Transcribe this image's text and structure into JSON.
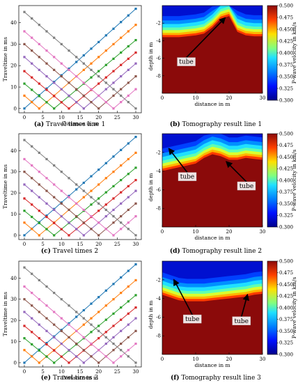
{
  "figure": {
    "captions": [
      {
        "letter": "(a)",
        "text": "Travel times line 1"
      },
      {
        "letter": "(b)",
        "text": "Tomography result line 1"
      },
      {
        "letter": "(c)",
        "text": "Travel times 2"
      },
      {
        "letter": "(d)",
        "text": "Tomography result line 2"
      },
      {
        "letter": "(e)",
        "text": "Travel times 3"
      },
      {
        "letter": "(f)",
        "text": "Tomography result line 3"
      }
    ],
    "colors": [
      "#1f77b4",
      "#ff7f0e",
      "#2ca02c",
      "#d62728",
      "#9467bd",
      "#8c564b",
      "#e377c2",
      "#7f7f7f"
    ],
    "tomo_colors": {
      "high": "#8b0a0a",
      "mid": "#ffb400",
      "low": "#00008b"
    }
  },
  "chart_data": [
    {
      "type": "line",
      "panel": "a",
      "xlabel": "Distance in m",
      "ylabel": "Traveltime in ms",
      "xlim": [
        -1.5,
        31.5
      ],
      "ylim": [
        -2,
        48
      ],
      "xticks": [
        0,
        5,
        10,
        15,
        20,
        25,
        30
      ],
      "yticks": [
        0,
        10,
        20,
        30,
        40
      ],
      "grid": false,
      "series": [
        {
          "source": 0,
          "slope": 1.55,
          "y0": 0
        },
        {
          "source": 4,
          "slope": 1.5,
          "y0": 0
        },
        {
          "source": 8,
          "slope": 1.45,
          "y0": 0
        },
        {
          "source": 12,
          "slope": 1.45,
          "y0": 0
        },
        {
          "source": 16,
          "slope": 1.5,
          "y0": 0
        },
        {
          "source": 20,
          "slope": 1.5,
          "y0": 0
        },
        {
          "source": 24,
          "slope": 1.5,
          "y0": 0
        },
        {
          "source": 30,
          "slope": 1.5,
          "y0": 0
        }
      ]
    },
    {
      "type": "heatmap",
      "panel": "b",
      "xlabel": "distance in m",
      "ylabel": "depth in m",
      "xlim": [
        0,
        30
      ],
      "ylim": [
        -10,
        0
      ],
      "xticks": [
        0,
        10,
        20,
        30
      ],
      "yticks": [
        -2,
        -4,
        -6,
        -8
      ],
      "colorbar": {
        "label": "P-wave velocity in km/s",
        "min": 0.3,
        "max": 0.5,
        "ticks": [
          0.5,
          0.475,
          0.45,
          0.425,
          0.4,
          0.375,
          0.35,
          0.325,
          0.3
        ]
      },
      "boundary_depth": [
        -3.6,
        -3.6,
        -3.6,
        -3.5,
        -3.4,
        -3.2,
        -2.5,
        -1.5,
        -1.2,
        -3.0,
        -3.4,
        -3.5,
        -3.5
      ],
      "annotations": [
        {
          "text": "tube",
          "x": 7.2,
          "y": -6.4,
          "arrow_to_x": 18.8,
          "arrow_to_y": -1.4
        }
      ]
    },
    {
      "type": "line",
      "panel": "c",
      "xlabel": "",
      "ylabel": "Traveltime in ms",
      "xlim": [
        -1.5,
        31.5
      ],
      "ylim": [
        -2,
        48
      ],
      "xticks": [
        0,
        5,
        10,
        15,
        20,
        25,
        30
      ],
      "yticks": [
        0,
        10,
        20,
        30,
        40
      ],
      "grid": false,
      "series": [
        {
          "source": 0,
          "slope": 1.55,
          "y0": 0
        },
        {
          "source": 4,
          "slope": 1.5,
          "y0": 0
        },
        {
          "source": 8,
          "slope": 1.45,
          "y0": 0
        },
        {
          "source": 12,
          "slope": 1.45,
          "y0": 0
        },
        {
          "source": 16,
          "slope": 1.5,
          "y0": 0
        },
        {
          "source": 20,
          "slope": 1.5,
          "y0": 0
        },
        {
          "source": 24,
          "slope": 1.5,
          "y0": 0
        },
        {
          "source": 30,
          "slope": 1.5,
          "y0": 0
        }
      ]
    },
    {
      "type": "heatmap",
      "panel": "d",
      "xlabel": "distance in m",
      "ylabel": "depth in m",
      "xlim": [
        0,
        30
      ],
      "ylim": [
        -10,
        0
      ],
      "xticks": [
        0,
        10,
        20,
        30
      ],
      "yticks": [
        -2,
        -4,
        -6,
        -8
      ],
      "colorbar": {
        "label": "P-wave velocity in km/s",
        "min": 0.3,
        "max": 0.5,
        "ticks": [
          0.5,
          0.475,
          0.45,
          0.425,
          0.4,
          0.375,
          0.35,
          0.325,
          0.3
        ]
      },
      "boundary_depth": [
        -4.0,
        -3.8,
        -3.6,
        -3.4,
        -3.2,
        -2.6,
        -2.2,
        -2.4,
        -2.8,
        -2.8,
        -2.6,
        -2.7,
        -2.8
      ],
      "annotations": [
        {
          "text": "tube",
          "x": 7.5,
          "y": -4.6,
          "arrow_to_x": 2.0,
          "arrow_to_y": -1.6
        },
        {
          "text": "tube",
          "x": 25.2,
          "y": -5.6,
          "arrow_to_x": 19.2,
          "arrow_to_y": -3.0
        }
      ]
    },
    {
      "type": "line",
      "panel": "e",
      "xlabel": "Distance in m",
      "ylabel": "Traveltime in ms",
      "xlim": [
        -1.5,
        31.5
      ],
      "ylim": [
        -2,
        48
      ],
      "xticks": [
        0,
        5,
        10,
        15,
        20,
        25,
        30
      ],
      "yticks": [
        0,
        10,
        20,
        30,
        40
      ],
      "grid": false,
      "series": [
        {
          "source": 0,
          "slope": 1.55,
          "y0": 0
        },
        {
          "source": 4,
          "slope": 1.5,
          "y0": 0
        },
        {
          "source": 8,
          "slope": 1.45,
          "y0": 0
        },
        {
          "source": 12,
          "slope": 1.45,
          "y0": 0
        },
        {
          "source": 16,
          "slope": 1.5,
          "y0": 0
        },
        {
          "source": 20,
          "slope": 1.5,
          "y0": 0
        },
        {
          "source": 24,
          "slope": 1.5,
          "y0": 0
        },
        {
          "source": 30,
          "slope": 1.5,
          "y0": 0
        }
      ]
    },
    {
      "type": "heatmap",
      "panel": "f",
      "xlabel": "distance in m",
      "ylabel": "depth in m",
      "xlim": [
        0,
        30
      ],
      "ylim": [
        -10,
        0
      ],
      "xticks": [
        0,
        10,
        20,
        30
      ],
      "yticks": [
        -2,
        -4,
        -6,
        -8
      ],
      "colorbar": {
        "label": "P-wave velocity in km/s",
        "min": 0.3,
        "max": 0.5,
        "ticks": [
          0.5,
          0.475,
          0.45,
          0.425,
          0.4,
          0.375,
          0.35,
          0.325,
          0.3
        ]
      },
      "boundary_depth": [
        -3.6,
        -3.9,
        -4.2,
        -4.3,
        -4.3,
        -4.3,
        -4.2,
        -4.1,
        -4.0,
        -3.9,
        -3.8,
        -3.6,
        -3.5
      ],
      "annotations": [
        {
          "text": "tube",
          "x": 9.0,
          "y": -6.2,
          "arrow_to_x": 3.5,
          "arrow_to_y": -2.0
        },
        {
          "text": "tube",
          "x": 23.7,
          "y": -6.4,
          "arrow_to_x": 25.5,
          "arrow_to_y": -3.6
        }
      ]
    }
  ]
}
